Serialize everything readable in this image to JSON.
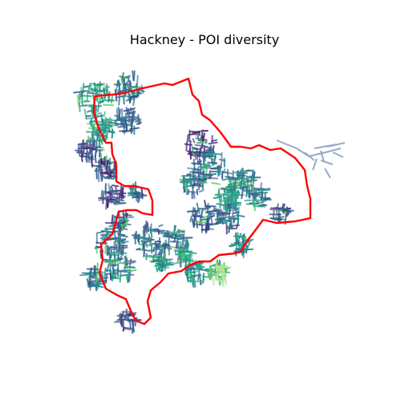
{
  "title": "Hackney - POI diversity",
  "map": {
    "boundary_color": "#ff0000",
    "street_palette": [
      "#440154",
      "#472c7a",
      "#3b528b",
      "#2c728e",
      "#21908d",
      "#27ad81",
      "#5cc863",
      "#aadc32",
      "#a6b4cc",
      "#7e6fa8"
    ],
    "highlight_cluster_color": "#2a9d8f",
    "light_green_cluster_color": "#b4e89a",
    "outlier_color": "#9aa9c8"
  }
}
